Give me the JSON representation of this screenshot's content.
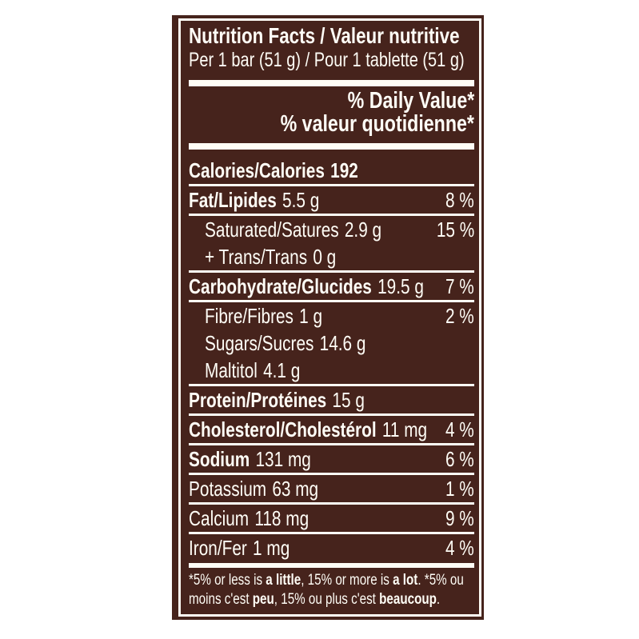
{
  "colors": {
    "page_background": "#ffffff",
    "label_background": "#46231c",
    "label_text": "#fffdf6",
    "frame": "#fffdf6"
  },
  "label": {
    "header": {
      "title": "Nutrition Facts / Valeur nutritive",
      "serving": "Per 1 bar (51 g) / Pour 1 tablette (51 g)",
      "daily_value_en": "% Daily Value*",
      "daily_value_fr": "% valeur quotidienne*"
    },
    "rows": [
      {
        "name": "Calories/Calories",
        "amount": "192",
        "dv": "",
        "name_bold": true,
        "amount_bold": true,
        "indent": false,
        "sep": "thin"
      },
      {
        "name": "Fat/Lipides",
        "amount": "5.5 g",
        "dv": "8 %",
        "name_bold": true,
        "amount_bold": false,
        "indent": false,
        "sep": "thin"
      },
      {
        "name": "Saturated/Satures",
        "amount": "2.9 g",
        "dv": "15 %",
        "name_bold": false,
        "amount_bold": false,
        "indent": true,
        "sep": "none"
      },
      {
        "name": "+ Trans/Trans",
        "amount": "0 g",
        "dv": "",
        "name_bold": false,
        "amount_bold": false,
        "indent": true,
        "sep": "thin"
      },
      {
        "name": "Carbohydrate/Glucides",
        "amount": "19.5 g",
        "dv": "7 %",
        "name_bold": true,
        "amount_bold": false,
        "indent": false,
        "sep": "thin"
      },
      {
        "name": "Fibre/Fibres",
        "amount": "1 g",
        "dv": "2 %",
        "name_bold": false,
        "amount_bold": false,
        "indent": true,
        "sep": "none"
      },
      {
        "name": "Sugars/Sucres",
        "amount": "14.6 g",
        "dv": "",
        "name_bold": false,
        "amount_bold": false,
        "indent": true,
        "sep": "none"
      },
      {
        "name": "Maltitol",
        "amount": "4.1 g",
        "dv": "",
        "name_bold": false,
        "amount_bold": false,
        "indent": true,
        "sep": "thin"
      },
      {
        "name": "Protein/Protéines",
        "amount": "15 g",
        "dv": "",
        "name_bold": true,
        "amount_bold": false,
        "indent": false,
        "sep": "thin"
      },
      {
        "name": "Cholesterol/Cholestérol",
        "amount": "11 mg",
        "dv": "4 %",
        "name_bold": true,
        "amount_bold": false,
        "indent": false,
        "sep": "thin"
      },
      {
        "name": "Sodium",
        "amount": "131 mg",
        "dv": "6 %",
        "name_bold": true,
        "amount_bold": false,
        "indent": false,
        "sep": "thin"
      },
      {
        "name": "Potassium",
        "amount": "63 mg",
        "dv": "1 %",
        "name_bold": false,
        "amount_bold": false,
        "indent": false,
        "sep": "thin"
      },
      {
        "name": "Calcium",
        "amount": "118 mg",
        "dv": "9 %",
        "name_bold": false,
        "amount_bold": false,
        "indent": false,
        "sep": "thin"
      },
      {
        "name": "Iron/Fer",
        "amount": "1 mg",
        "dv": "4 %",
        "name_bold": false,
        "amount_bold": false,
        "indent": false,
        "sep": "medium"
      }
    ],
    "footnote": {
      "lines": [
        [
          {
            "text": "*5% or less is ",
            "bold": false
          },
          {
            "text": "a little",
            "bold": true
          },
          {
            "text": ", 15% or more is ",
            "bold": false
          },
          {
            "text": "a lot",
            "bold": true
          },
          {
            "text": ". *5% ou",
            "bold": false
          }
        ],
        [
          {
            "text": "moins c'est ",
            "bold": false
          },
          {
            "text": "peu",
            "bold": true
          },
          {
            "text": ", 15% ou plus c'est ",
            "bold": false
          },
          {
            "text": "beaucoup",
            "bold": true
          },
          {
            "text": ".",
            "bold": false
          }
        ]
      ]
    }
  }
}
